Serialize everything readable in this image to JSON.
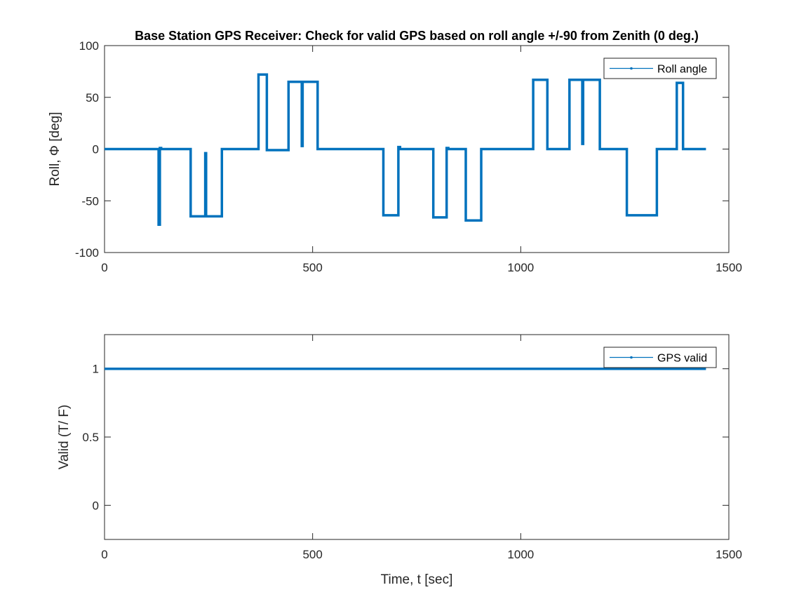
{
  "figure": {
    "title": "Base Station GPS Receiver: Check for valid GPS based on roll angle +/-90 from Zenith (0 deg.)"
  },
  "chart_data": [
    {
      "type": "line",
      "ylabel": "Roll, Φ [deg]",
      "xlabel": "",
      "xlim": [
        0,
        1500
      ],
      "ylim": [
        -100,
        100
      ],
      "xticks": [
        0,
        500,
        1000,
        1500
      ],
      "yticks": [
        -100,
        -50,
        0,
        50,
        100
      ],
      "xtick_labels": [
        "0",
        "500",
        "1000",
        "1500"
      ],
      "ytick_labels": [
        "-100",
        "-50",
        "0",
        "50",
        "100"
      ],
      "legend": {
        "position": "top-right",
        "entries": [
          "Roll angle"
        ]
      },
      "grid": false,
      "series": [
        {
          "name": "Roll angle",
          "color": "#0072bd",
          "x": [
            0,
            130,
            130,
            133,
            133,
            136,
            136,
            207,
            207,
            242,
            242,
            244,
            244,
            246,
            246,
            282,
            282,
            370,
            370,
            390,
            390,
            442,
            442,
            474,
            474,
            476,
            476,
            478,
            478,
            512,
            512,
            670,
            670,
            706,
            706,
            710,
            710,
            790,
            790,
            822,
            822,
            826,
            826,
            868,
            868,
            905,
            905,
            1030,
            1030,
            1064,
            1064,
            1117,
            1117,
            1148,
            1148,
            1150,
            1150,
            1152,
            1152,
            1190,
            1190,
            1255,
            1255,
            1327,
            1327,
            1375,
            1375,
            1390,
            1390,
            1445
          ],
          "y": [
            0,
            0,
            -73,
            -73,
            1,
            1,
            0,
            0,
            -65,
            -65,
            -4,
            -4,
            -65,
            -65,
            -65,
            -65,
            0,
            0,
            72,
            72,
            -1,
            -1,
            65,
            65,
            3,
            3,
            65,
            65,
            65,
            65,
            0,
            0,
            -64,
            -64,
            2,
            2,
            0,
            0,
            -66,
            -66,
            1,
            1,
            0,
            0,
            -69,
            -69,
            0,
            0,
            67,
            67,
            0,
            0,
            67,
            67,
            5,
            5,
            67,
            67,
            67,
            67,
            0,
            0,
            -64,
            -64,
            0,
            0,
            64,
            64,
            0,
            0
          ]
        }
      ]
    },
    {
      "type": "line",
      "ylabel": "Valid (T/ F)",
      "xlabel": "Time, t [sec]",
      "xlim": [
        0,
        1500
      ],
      "ylim": [
        -0.25,
        1.25
      ],
      "xticks": [
        0,
        500,
        1000,
        1500
      ],
      "yticks": [
        0,
        0.5,
        1
      ],
      "xtick_labels": [
        "0",
        "500",
        "1000",
        "1500"
      ],
      "ytick_labels": [
        "0",
        "0.5",
        "1"
      ],
      "legend": {
        "position": "top-right",
        "entries": [
          "GPS valid"
        ]
      },
      "grid": false,
      "series": [
        {
          "name": "GPS valid",
          "color": "#0072bd",
          "x": [
            0,
            1445
          ],
          "y": [
            1,
            1
          ]
        }
      ]
    }
  ]
}
